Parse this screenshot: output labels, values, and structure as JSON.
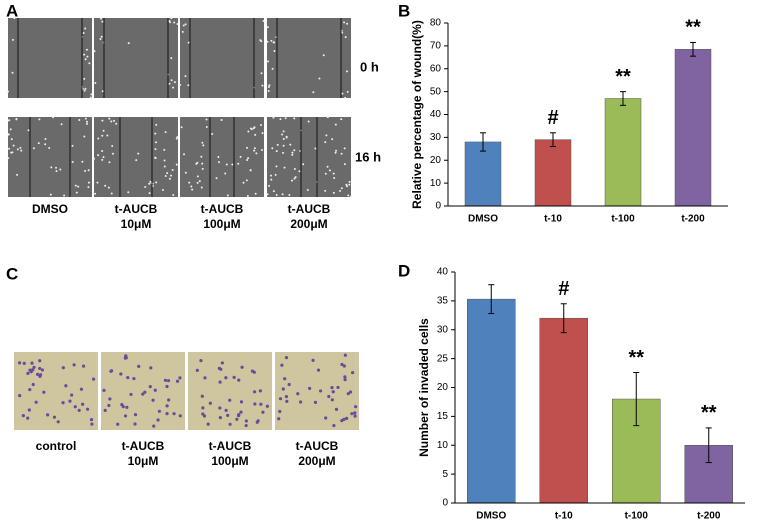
{
  "panels": {
    "A": {
      "label": "A",
      "rows": [
        "0 h",
        "16 h"
      ],
      "captions": [
        [
          "DMSO"
        ],
        [
          "t-AUCB",
          "10μM"
        ],
        [
          "t-AUCB",
          "100μM"
        ],
        [
          "t-AUCB",
          "200μM"
        ]
      ]
    },
    "C": {
      "label": "C",
      "captions": [
        [
          "control"
        ],
        [
          "t-AUCB",
          "10μM"
        ],
        [
          "t-AUCB",
          "100μM"
        ],
        [
          "t-AUCB",
          "200μM"
        ]
      ]
    }
  },
  "chart_data": [
    {
      "type": "bar",
      "panel_label": "B",
      "y_label": "Relative percentage of wound(%)",
      "categories": [
        "DMSO",
        "t-10",
        "t-100",
        "t-200"
      ],
      "values": [
        28,
        29,
        47,
        68.5
      ],
      "errors": [
        4,
        3,
        3,
        3
      ],
      "annotations": [
        null,
        "#",
        "**",
        "**"
      ],
      "colors": [
        "#4f81bd",
        "#c0504d",
        "#9bbb59",
        "#8064a2"
      ],
      "ylim": [
        0,
        80
      ],
      "yticks": [
        0,
        10,
        20,
        30,
        40,
        50,
        60,
        70,
        80
      ]
    },
    {
      "type": "bar",
      "panel_label": "D",
      "y_label": "Number of invaded cells",
      "categories": [
        "DMSO",
        "t-10",
        "t-100",
        "t-200"
      ],
      "values": [
        35.3,
        32,
        18,
        10
      ],
      "errors": [
        2.5,
        2.5,
        4.6,
        3
      ],
      "annotations": [
        null,
        "#",
        "**",
        "**"
      ],
      "colors": [
        "#4f81bd",
        "#c0504d",
        "#9bbb59",
        "#8064a2"
      ],
      "ylim": [
        0,
        40
      ],
      "yticks": [
        0,
        5,
        10,
        15,
        20,
        25,
        30,
        35,
        40
      ]
    }
  ]
}
